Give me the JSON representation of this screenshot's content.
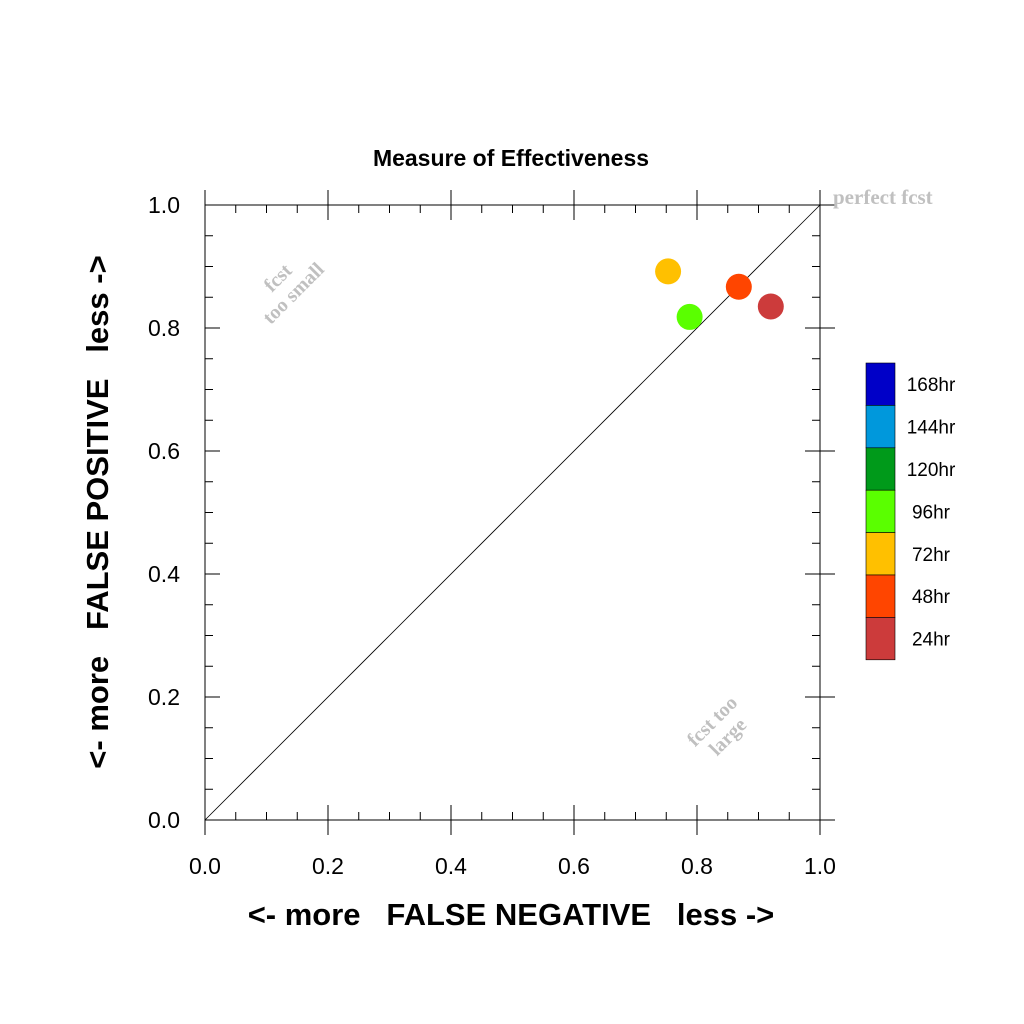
{
  "chart_data": {
    "type": "scatter",
    "title": "Measure of Effectiveness",
    "xlabel": "<- more   FALSE NEGATIVE   less ->",
    "ylabel": "<- more   FALSE POSITIVE   less ->",
    "xlim": [
      0.0,
      1.0
    ],
    "ylim": [
      0.0,
      1.0
    ],
    "xticks": [
      "0.0",
      "0.2",
      "0.4",
      "0.6",
      "0.8",
      "1.0"
    ],
    "yticks": [
      "0.0",
      "0.2",
      "0.4",
      "0.6",
      "0.8",
      "1.0"
    ],
    "reference_line": {
      "from": [
        0,
        0
      ],
      "to": [
        1,
        1
      ]
    },
    "annotations": {
      "perfect": "perfect fcst",
      "too_small": [
        "fcst",
        "too small"
      ],
      "too_large": [
        "fcst too",
        "large"
      ]
    },
    "series": [
      {
        "name": "24hr",
        "color": "#cc3b3b",
        "x": [
          0.92
        ],
        "y": [
          0.835
        ]
      },
      {
        "name": "48hr",
        "color": "#ff4500",
        "x": [
          0.868
        ],
        "y": [
          0.867
        ]
      },
      {
        "name": "72hr",
        "color": "#ffc000",
        "x": [
          0.753
        ],
        "y": [
          0.892
        ]
      },
      {
        "name": "96hr",
        "color": "#5aff00",
        "x": [
          0.788
        ],
        "y": [
          0.818
        ]
      }
    ],
    "legend": {
      "placement": "right",
      "entries": [
        {
          "label": "168hr",
          "color": "#0000c8"
        },
        {
          "label": "144hr",
          "color": "#0098dc"
        },
        {
          "label": "120hr",
          "color": "#009a1a"
        },
        {
          "label": "96hr",
          "color": "#5aff00"
        },
        {
          "label": "72hr",
          "color": "#ffc000"
        },
        {
          "label": "48hr",
          "color": "#ff4500"
        },
        {
          "label": "24hr",
          "color": "#cc3b3b"
        }
      ]
    }
  }
}
